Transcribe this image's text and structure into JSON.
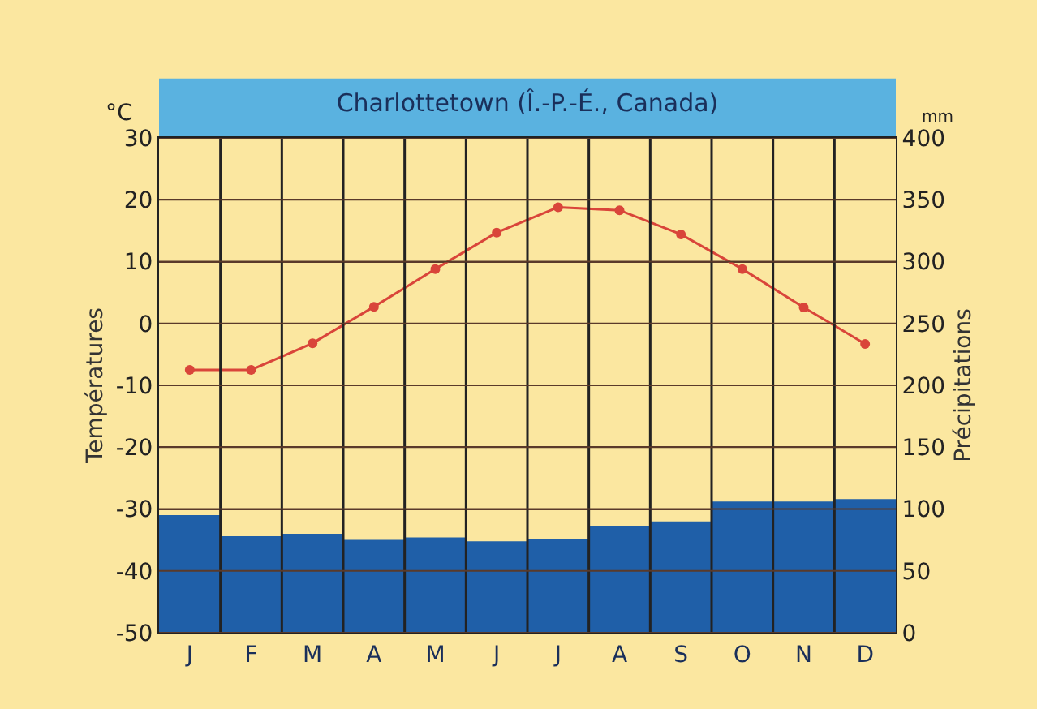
{
  "chart_data": {
    "type": "bar",
    "title": "Charlottetown (Î.-P.-É., Canada)",
    "ylabel": "Températures",
    "y2label": "Précipitations",
    "annotations": [
      "°C",
      "mm"
    ],
    "categories": [
      "J",
      "F",
      "M",
      "A",
      "M",
      "J",
      "J",
      "A",
      "S",
      "O",
      "N",
      "D"
    ],
    "series": [
      {
        "axis": "y2",
        "color": "#1f5fa8",
        "values": [
          95,
          78,
          80,
          75,
          77,
          74,
          76,
          86,
          90,
          106,
          106,
          108
        ]
      },
      {
        "type": "line",
        "axis": "y",
        "color": "#d9453a",
        "marker": "circle",
        "values": [
          -7.5,
          -7.5,
          -3.2,
          2.7,
          8.8,
          14.7,
          18.8,
          18.3,
          14.4,
          8.8,
          2.6,
          -3.3
        ]
      }
    ],
    "ylim": [
      -50,
      30
    ],
    "yticks": [
      -50,
      -40,
      -30,
      -20,
      -10,
      0,
      10,
      20,
      30
    ],
    "y2lim": [
      0,
      400
    ],
    "y2ticks": [
      0,
      50,
      100,
      150,
      200,
      250,
      300,
      350,
      400
    ],
    "grid": true
  }
}
